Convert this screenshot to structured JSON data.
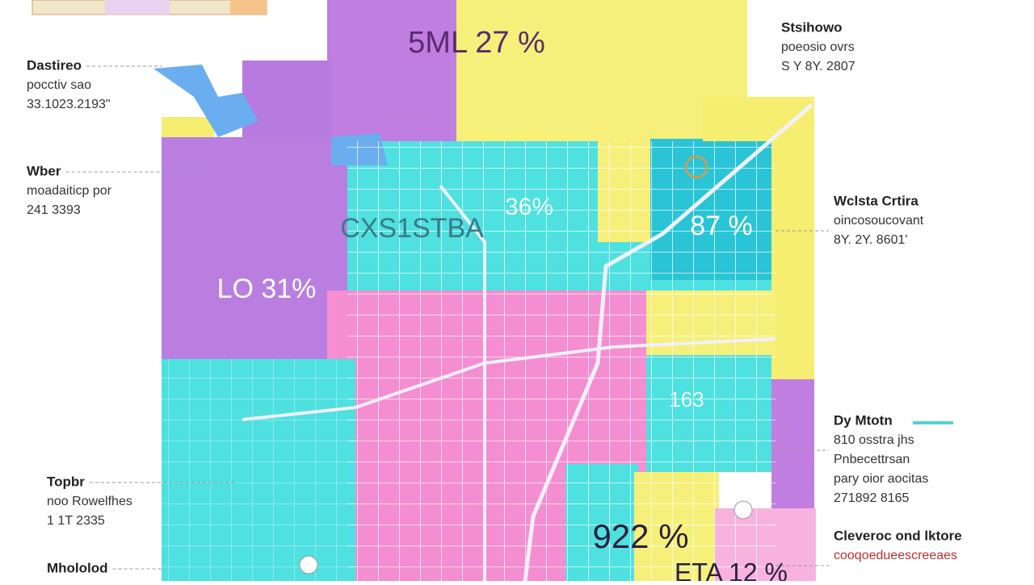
{
  "region_labels": [
    "5ML 27 %",
    "36%",
    "CXS1STBA",
    "87 %",
    "LO 31%",
    "163",
    "922 %",
    "ETA 12 %"
  ],
  "left_callouts": [
    {
      "title": "Dastireo",
      "lines": [
        "pocctiv sao",
        "33.1023.2193\""
      ]
    },
    {
      "title": "Wber",
      "lines": [
        "moadaiticp por",
        "241 3393"
      ]
    },
    {
      "title": "Topbr",
      "lines": [
        "noo Rowelfhes",
        "1 1T 2335"
      ]
    },
    {
      "title": "Mhololod",
      "lines": []
    }
  ],
  "right_callouts": [
    {
      "title": "Stsihowo",
      "lines": [
        "poeosio ovrs",
        "S Y 8Y. 2807"
      ]
    },
    {
      "title": "Wclsta Crtira",
      "lines": [
        "oincosoucovant",
        "8Y. 2Y. 8601'"
      ]
    },
    {
      "title": "Dy Mtotn",
      "lines": [
        "810 osstra jhs",
        "Pnbecettrsan",
        "pary oior aocitas",
        "271892 8165"
      ]
    },
    {
      "title": "Cleveroc ond lktore",
      "lines": [
        "cooqoedueescreeaes"
      ]
    }
  ]
}
